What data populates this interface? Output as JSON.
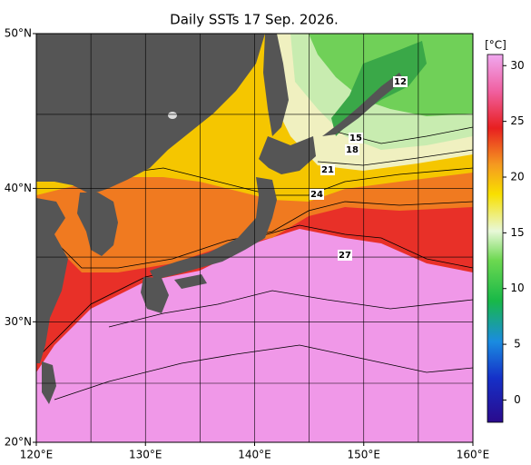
{
  "map": {
    "title": "Daily SSTs 17 Sep. 2026.",
    "xlim": [
      120,
      160
    ],
    "ylim": [
      20,
      50
    ],
    "xticks": [
      {
        "value": 120,
        "label": "120°E"
      },
      {
        "value": 130,
        "label": "130°E"
      },
      {
        "value": 140,
        "label": "140°E"
      },
      {
        "value": 150,
        "label": "150°E"
      },
      {
        "value": 160,
        "label": "160°E"
      }
    ],
    "yticks": [
      {
        "value": 20,
        "label": "20°N"
      },
      {
        "value": 30,
        "label": "30°N"
      },
      {
        "value": 40,
        "label": "40°N"
      },
      {
        "value": 50,
        "label": "50°N"
      }
    ],
    "contour_labels": [
      "12",
      "15",
      "18",
      "21",
      "24",
      "27"
    ]
  },
  "colorbar": {
    "label": "[°C]",
    "lim": [
      -2,
      31
    ],
    "ticks": [
      0,
      5,
      10,
      15,
      20,
      25,
      30
    ]
  }
}
